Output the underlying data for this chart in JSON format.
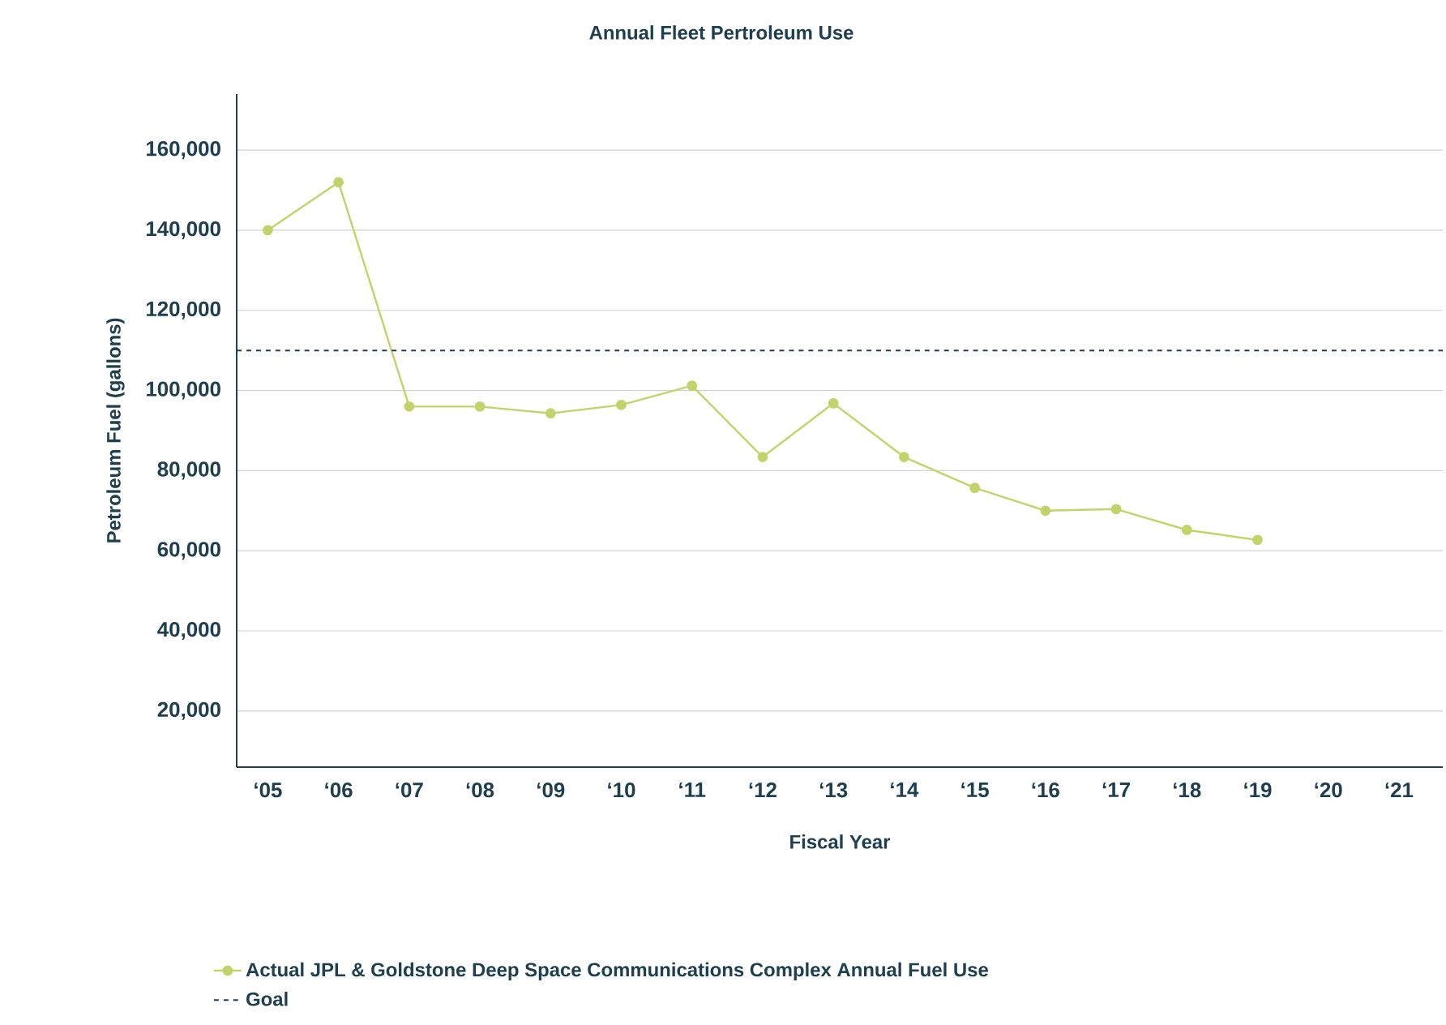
{
  "chart_data": {
    "type": "line",
    "title": "Annual Fleet Pertroleum Use",
    "xlabel": "Fiscal Year",
    "ylabel": "Petroleum Fuel (gallons)",
    "categories": [
      "‘05",
      "‘06",
      "‘07",
      "‘08",
      "‘09",
      "‘10",
      "‘11",
      "‘12",
      "‘13",
      "‘14",
      "‘15",
      "‘16",
      "‘17",
      "‘18",
      "‘19",
      "‘20",
      "‘21"
    ],
    "series": [
      {
        "name": "Actual JPL & Goldstone Deep Space Communications Complex Annual Fuel Use",
        "color": "#c4d26a",
        "values": [
          140000,
          152000,
          96000,
          96000,
          94300,
          96400,
          101200,
          83400,
          96800,
          83400,
          75700,
          70000,
          70400,
          65200,
          62700,
          null,
          null
        ]
      }
    ],
    "ylim": [
      6000,
      174000
    ],
    "yticks": [
      {
        "value": 20000,
        "label": "20,000"
      },
      {
        "value": 40000,
        "label": "40,000"
      },
      {
        "value": 60000,
        "label": "60,000"
      },
      {
        "value": 80000,
        "label": "80,000"
      },
      {
        "value": 100000,
        "label": "100,000"
      },
      {
        "value": 120000,
        "label": "120,000"
      },
      {
        "value": 140000,
        "label": "140,000"
      },
      {
        "value": 160000,
        "label": "160,000"
      }
    ],
    "ref_lines": [
      {
        "axis": "y",
        "value": 110000,
        "label": "Goal",
        "color": "#1d3f4f",
        "line_style": "dashed"
      }
    ],
    "grid": "y",
    "legend": "bottom",
    "marker": "circle",
    "line_style": "solid"
  }
}
